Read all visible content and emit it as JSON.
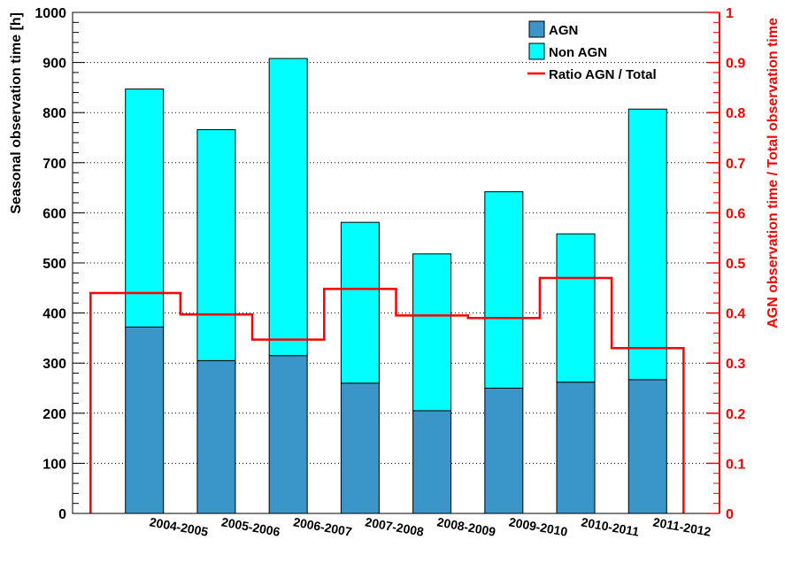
{
  "chart_data": {
    "type": "bar",
    "stacked": true,
    "categories": [
      "2004-2005",
      "2005-2006",
      "2006-2007",
      "2007-2008",
      "2008-2009",
      "2009-2010",
      "2010-2011",
      "2011-2012"
    ],
    "series": [
      {
        "name": "AGN",
        "values": [
          372,
          305,
          315,
          260,
          205,
          250,
          262,
          267
        ],
        "color": "#3a95c8",
        "axis": "left"
      },
      {
        "name": "Non AGN",
        "values": [
          475,
          461,
          593,
          321,
          313,
          392,
          296,
          540
        ],
        "color": "#00ffff",
        "axis": "left"
      }
    ],
    "ratio_series": {
      "name": "Ratio AGN / Total",
      "type": "step-line",
      "values": [
        0.44,
        0.397,
        0.347,
        0.448,
        0.395,
        0.39,
        0.47,
        0.33
      ],
      "color": "#ff0000",
      "axis": "right"
    },
    "ylabel": "Seasonal observation time [h]",
    "ylabel_right": "AGN observation time / Total observation time",
    "ylim": [
      0,
      1000
    ],
    "ylim_right": [
      0,
      1
    ],
    "y_ticks": [
      "0",
      "100",
      "200",
      "300",
      "400",
      "500",
      "600",
      "700",
      "800",
      "900",
      "1000"
    ],
    "y_ticks_right": [
      "0",
      "0.1",
      "0.2",
      "0.3",
      "0.4",
      "0.5",
      "0.6",
      "0.7",
      "0.8",
      "0.9",
      "1"
    ],
    "grid": true,
    "legend_position": "top-right",
    "legend": [
      {
        "label": "AGN",
        "kind": "box",
        "color": "#3a95c8"
      },
      {
        "label": "Non AGN",
        "kind": "box",
        "color": "#00ffff"
      },
      {
        "label": "Ratio AGN / Total",
        "kind": "line",
        "color": "#ff0000"
      }
    ]
  }
}
